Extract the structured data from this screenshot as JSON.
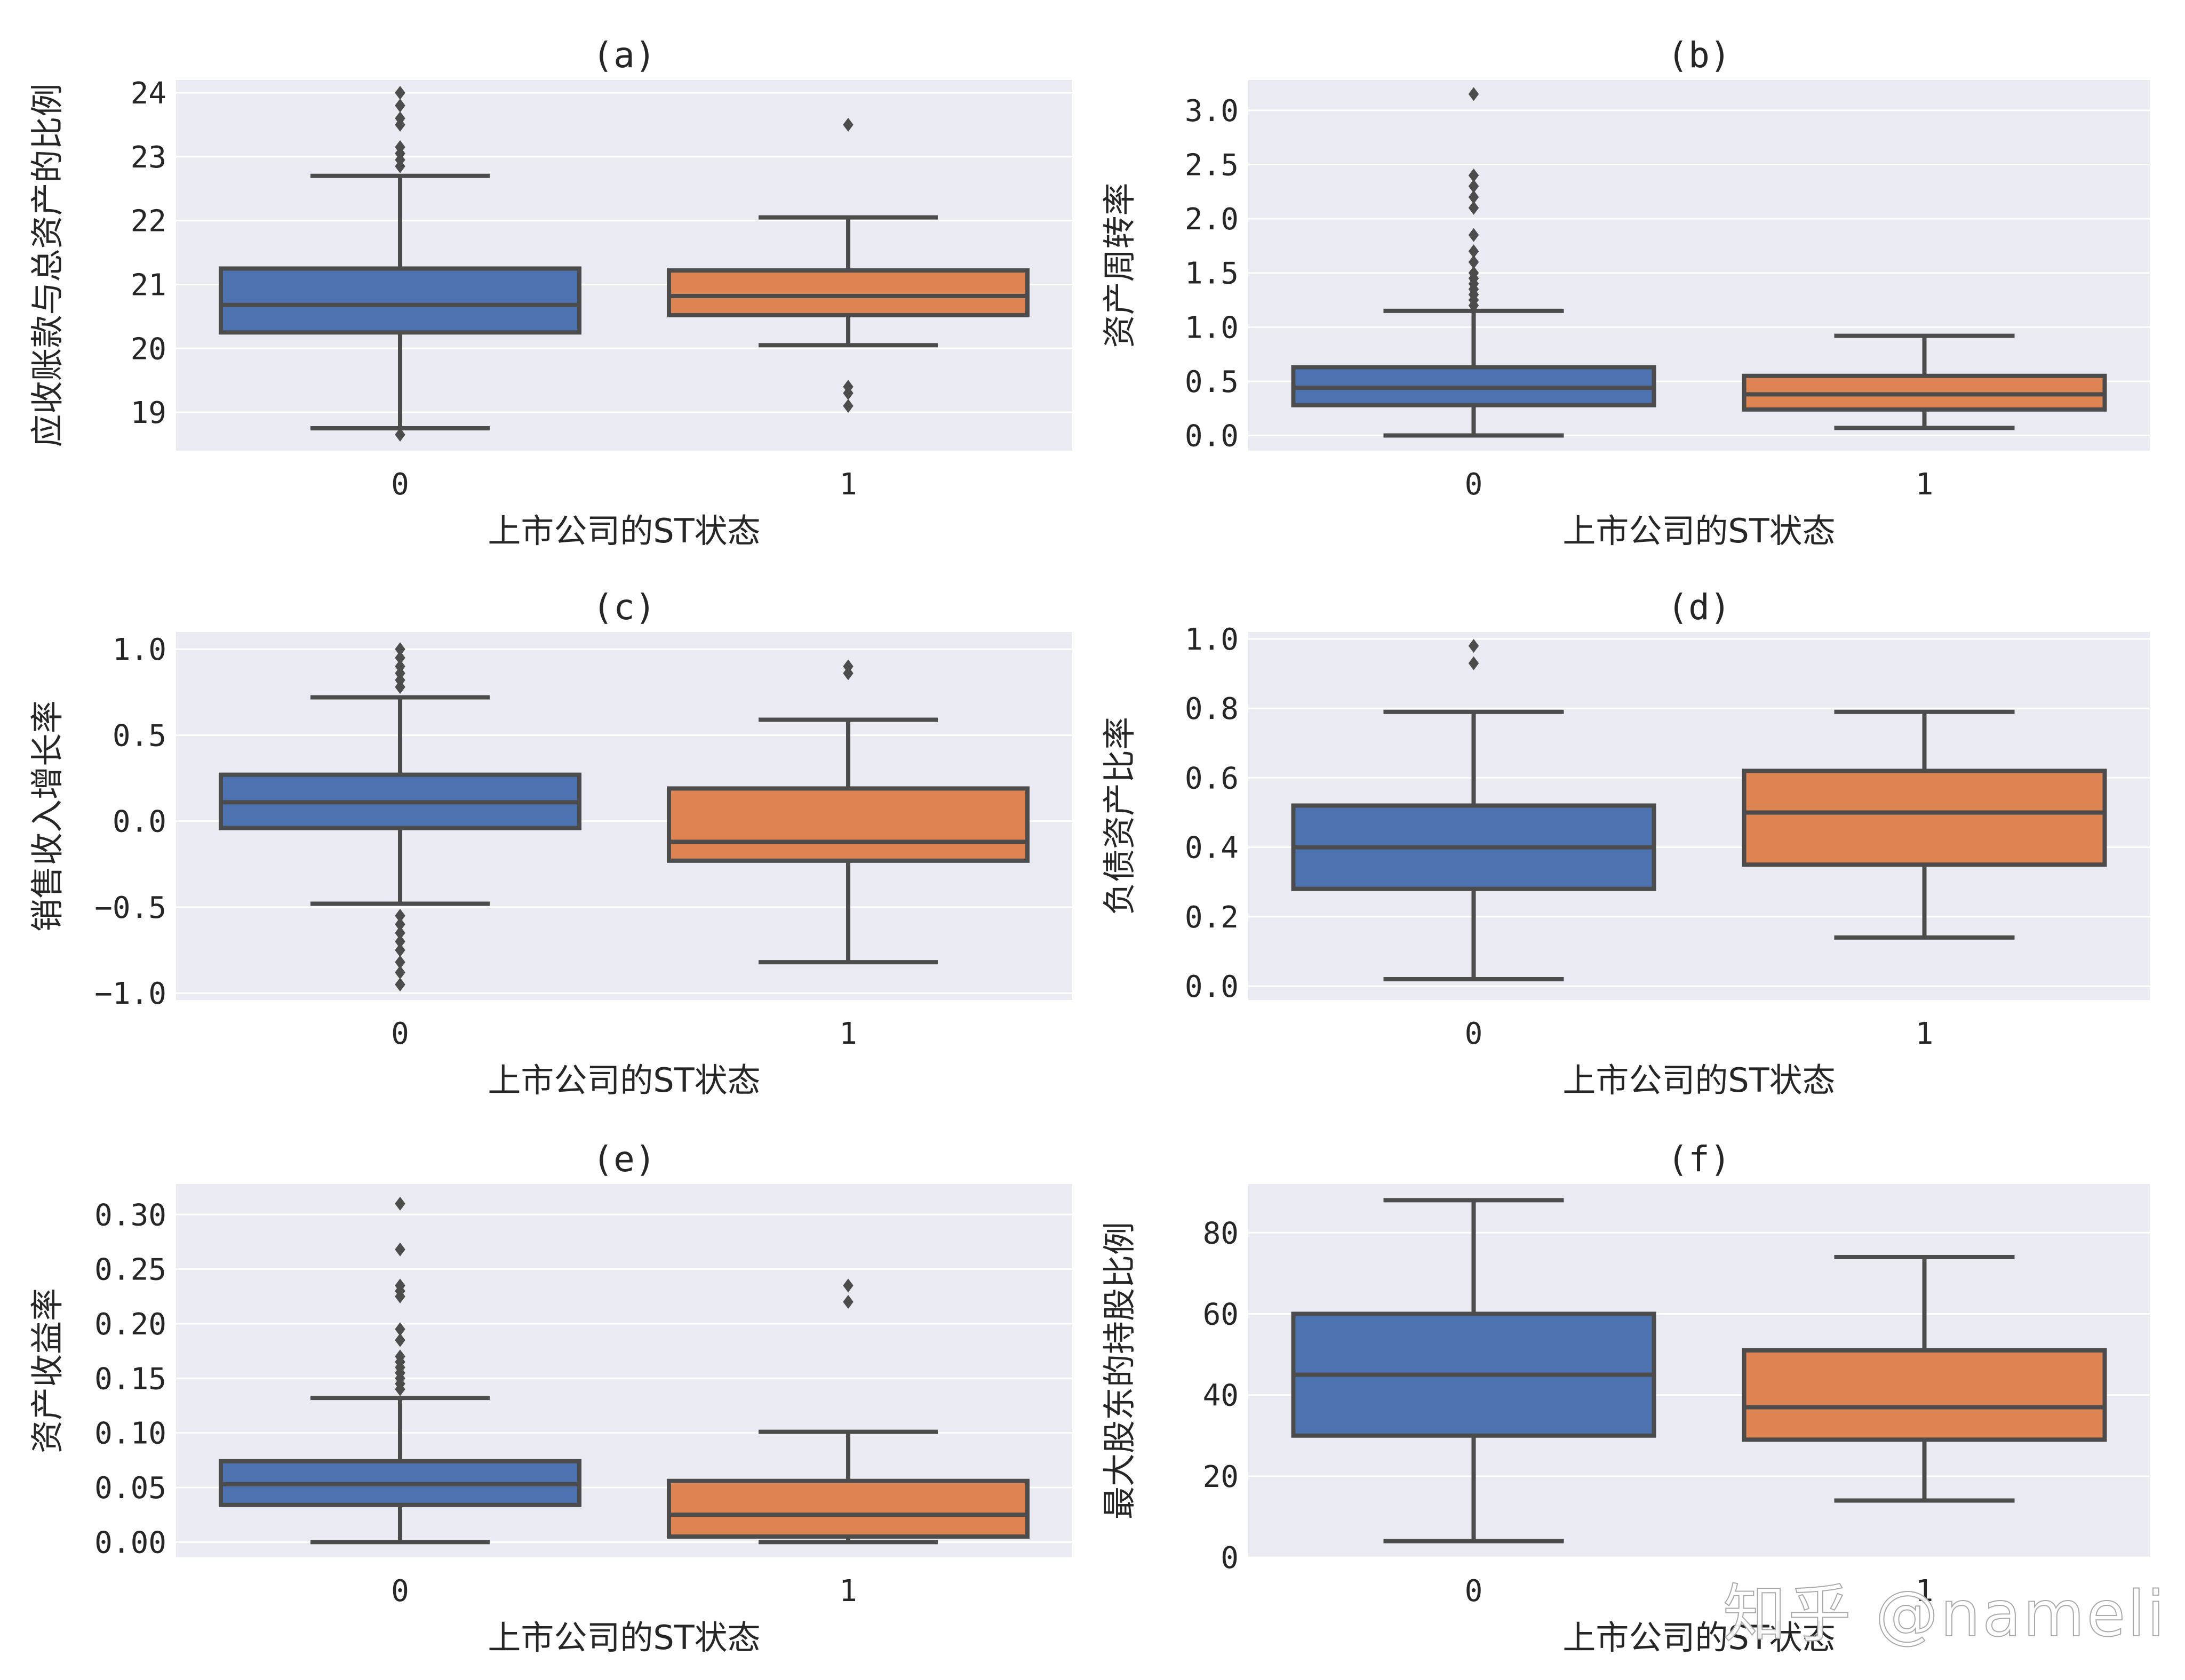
{
  "watermark": "知乎 @nameli",
  "colors": {
    "bg": "#EAEAF2",
    "grid": "#FFFFFF",
    "line": "#4C4C4C",
    "group0": "#4C72B0",
    "group1": "#DD8452"
  },
  "chart_data": [
    {
      "type": "box",
      "title": "(a)",
      "xlabel": "上市公司的ST状态",
      "ylabel": "应收账款与总资产的比例",
      "categories": [
        "0",
        "1"
      ],
      "ylim": [
        18.4,
        24.2
      ],
      "yticks": [
        19,
        20,
        21,
        22,
        23,
        24
      ],
      "ytick_labels": [
        "19",
        "20",
        "21",
        "22",
        "23",
        "24"
      ],
      "boxes": [
        {
          "group": "0",
          "whisker_low": 18.75,
          "q1": 20.25,
          "median": 20.68,
          "q3": 21.25,
          "whisker_high": 22.7,
          "outliers": [
            18.65,
            22.85,
            22.95,
            23.05,
            23.15,
            23.5,
            23.6,
            23.8,
            24.0
          ]
        },
        {
          "group": "1",
          "whisker_low": 20.05,
          "q1": 20.52,
          "median": 20.82,
          "q3": 21.22,
          "whisker_high": 22.05,
          "outliers": [
            19.1,
            19.3,
            19.4,
            23.5
          ]
        }
      ]
    },
    {
      "type": "box",
      "title": "(b)",
      "xlabel": "上市公司的ST状态",
      "ylabel": "资产周转率",
      "categories": [
        "0",
        "1"
      ],
      "ylim": [
        -0.14,
        3.28
      ],
      "yticks": [
        0.0,
        0.5,
        1.0,
        1.5,
        2.0,
        2.5,
        3.0
      ],
      "ytick_labels": [
        "0.0",
        "0.5",
        "1.0",
        "1.5",
        "2.0",
        "2.5",
        "3.0"
      ],
      "boxes": [
        {
          "group": "0",
          "whisker_low": 0.0,
          "q1": 0.28,
          "median": 0.44,
          "q3": 0.63,
          "whisker_high": 1.15,
          "outliers": [
            1.2,
            1.25,
            1.3,
            1.35,
            1.4,
            1.45,
            1.5,
            1.6,
            1.7,
            1.85,
            2.1,
            2.2,
            2.3,
            2.4,
            3.15
          ]
        },
        {
          "group": "1",
          "whisker_low": 0.07,
          "q1": 0.24,
          "median": 0.38,
          "q3": 0.55,
          "whisker_high": 0.92,
          "outliers": []
        }
      ]
    },
    {
      "type": "box",
      "title": "(c)",
      "xlabel": "上市公司的ST状态",
      "ylabel": "销售收入增长率",
      "categories": [
        "0",
        "1"
      ],
      "ylim": [
        -1.04,
        1.1
      ],
      "yticks": [
        -1.0,
        -0.5,
        0.0,
        0.5,
        1.0
      ],
      "ytick_labels": [
        "−1.0",
        "−0.5",
        "0.0",
        "0.5",
        "1.0"
      ],
      "boxes": [
        {
          "group": "0",
          "whisker_low": -0.48,
          "q1": -0.04,
          "median": 0.11,
          "q3": 0.27,
          "whisker_high": 0.72,
          "outliers": [
            -0.55,
            -0.6,
            -0.65,
            -0.7,
            -0.75,
            -0.82,
            -0.88,
            -0.95,
            0.78,
            0.82,
            0.86,
            0.9,
            0.95,
            1.0
          ]
        },
        {
          "group": "1",
          "whisker_low": -0.82,
          "q1": -0.23,
          "median": -0.12,
          "q3": 0.19,
          "whisker_high": 0.59,
          "outliers": [
            0.86,
            0.9
          ]
        }
      ]
    },
    {
      "type": "box",
      "title": "(d)",
      "xlabel": "上市公司的ST状态",
      "ylabel": "负债资产比率",
      "categories": [
        "0",
        "1"
      ],
      "ylim": [
        -0.04,
        1.02
      ],
      "yticks": [
        0.0,
        0.2,
        0.4,
        0.6,
        0.8,
        1.0
      ],
      "ytick_labels": [
        "0.0",
        "0.2",
        "0.4",
        "0.6",
        "0.8",
        "1.0"
      ],
      "boxes": [
        {
          "group": "0",
          "whisker_low": 0.02,
          "q1": 0.28,
          "median": 0.4,
          "q3": 0.52,
          "whisker_high": 0.79,
          "outliers": [
            0.93,
            0.98
          ]
        },
        {
          "group": "1",
          "whisker_low": 0.14,
          "q1": 0.35,
          "median": 0.5,
          "q3": 0.62,
          "whisker_high": 0.79,
          "outliers": []
        }
      ]
    },
    {
      "type": "box",
      "title": "(e)",
      "xlabel": "上市公司的ST状态",
      "ylabel": "资产收益率",
      "categories": [
        "0",
        "1"
      ],
      "ylim": [
        -0.014,
        0.328
      ],
      "yticks": [
        0.0,
        0.05,
        0.1,
        0.15,
        0.2,
        0.25,
        0.3
      ],
      "ytick_labels": [
        "0.00",
        "0.05",
        "0.10",
        "0.15",
        "0.20",
        "0.25",
        "0.30"
      ],
      "boxes": [
        {
          "group": "0",
          "whisker_low": 0.0,
          "q1": 0.034,
          "median": 0.053,
          "q3": 0.074,
          "whisker_high": 0.132,
          "outliers": [
            0.14,
            0.145,
            0.15,
            0.155,
            0.16,
            0.165,
            0.17,
            0.185,
            0.195,
            0.225,
            0.23,
            0.235,
            0.268,
            0.31
          ]
        },
        {
          "group": "1",
          "whisker_low": 0.0,
          "q1": 0.005,
          "median": 0.025,
          "q3": 0.056,
          "whisker_high": 0.101,
          "outliers": [
            0.22,
            0.235
          ]
        }
      ]
    },
    {
      "type": "box",
      "title": "(f)",
      "xlabel": "上市公司的ST状态",
      "ylabel": "最大股东的持股比例",
      "categories": [
        "0",
        "1"
      ],
      "ylim": [
        0,
        92
      ],
      "yticks": [
        0,
        20,
        40,
        60,
        80
      ],
      "ytick_labels": [
        "0",
        "20",
        "40",
        "60",
        "80"
      ],
      "boxes": [
        {
          "group": "0",
          "whisker_low": 4,
          "q1": 30,
          "median": 45,
          "q3": 60,
          "whisker_high": 88,
          "outliers": []
        },
        {
          "group": "1",
          "whisker_low": 14,
          "q1": 29,
          "median": 37,
          "q3": 51,
          "whisker_high": 74,
          "outliers": []
        }
      ]
    }
  ]
}
